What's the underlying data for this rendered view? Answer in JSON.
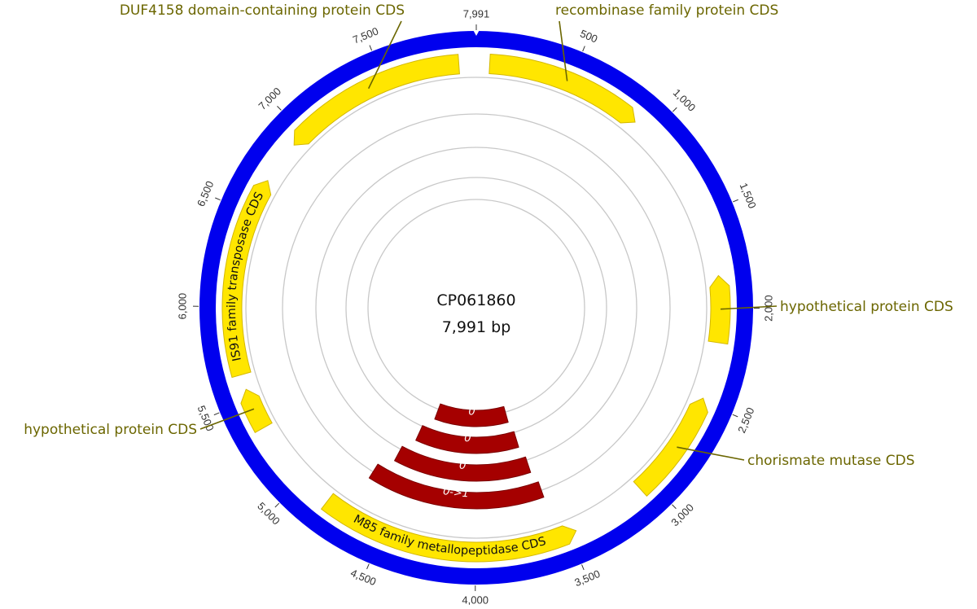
{
  "sequence": {
    "name": "CP061860",
    "length_label": "7,991 bp",
    "length": 7991
  },
  "ticks": [
    {
      "pos": 500,
      "label": "500"
    },
    {
      "pos": 1000,
      "label": "1,000"
    },
    {
      "pos": 1500,
      "label": "1,500"
    },
    {
      "pos": 2000,
      "label": "2,000"
    },
    {
      "pos": 2500,
      "label": "2,500"
    },
    {
      "pos": 3000,
      "label": "3,000"
    },
    {
      "pos": 3500,
      "label": "3,500"
    },
    {
      "pos": 4000,
      "label": "4,000"
    },
    {
      "pos": 4500,
      "label": "4,500"
    },
    {
      "pos": 5000,
      "label": "5,000"
    },
    {
      "pos": 5500,
      "label": "5,500"
    },
    {
      "pos": 6000,
      "label": "6,000"
    },
    {
      "pos": 6500,
      "label": "6,500"
    },
    {
      "pos": 7000,
      "label": "7,000"
    },
    {
      "pos": 7500,
      "label": "7,500"
    },
    {
      "pos": 7991,
      "label": "7,991"
    }
  ],
  "features": [
    {
      "name": "recombinase family protein CDS",
      "start": 70,
      "end": 900,
      "strand": "+",
      "label_mode": "callout"
    },
    {
      "name": "hypothetical protein CDS",
      "start": 1830,
      "end": 2180,
      "strand": "-",
      "label_mode": "callout"
    },
    {
      "name": "chorismate mutase CDS",
      "start": 2480,
      "end": 3060,
      "strand": "-",
      "label_mode": "callout"
    },
    {
      "name": "M85 family metallopeptidase CDS",
      "start": 3460,
      "end": 4830,
      "strand": "-",
      "label_mode": "inline"
    },
    {
      "name": "hypothetical protein CDS",
      "start": 5340,
      "end": 5560,
      "strand": "+",
      "label_mode": "callout"
    },
    {
      "name": "IS91 family transposase CDS",
      "start": 5640,
      "end": 6690,
      "strand": "+",
      "label_mode": "inline"
    },
    {
      "name": "DUF4158 domain-containing protein CDS",
      "start": 6920,
      "end": 7900,
      "strand": "-",
      "label_mode": "callout"
    }
  ],
  "cut_sites": [
    {
      "label": "0",
      "start": 3650,
      "end": 4450
    },
    {
      "label": "0",
      "start": 3620,
      "end": 4540
    },
    {
      "label": "0",
      "start": 3590,
      "end": 4620
    },
    {
      "label": "0->1",
      "start": 3560,
      "end": 4710
    }
  ],
  "colors": {
    "backbone": "#0000ee",
    "feature_fill": "#ffe600",
    "feature_stroke": "#d4b800",
    "cut_fill": "#a50000",
    "track": "#c8c8c8",
    "callout": "#6b6600"
  }
}
